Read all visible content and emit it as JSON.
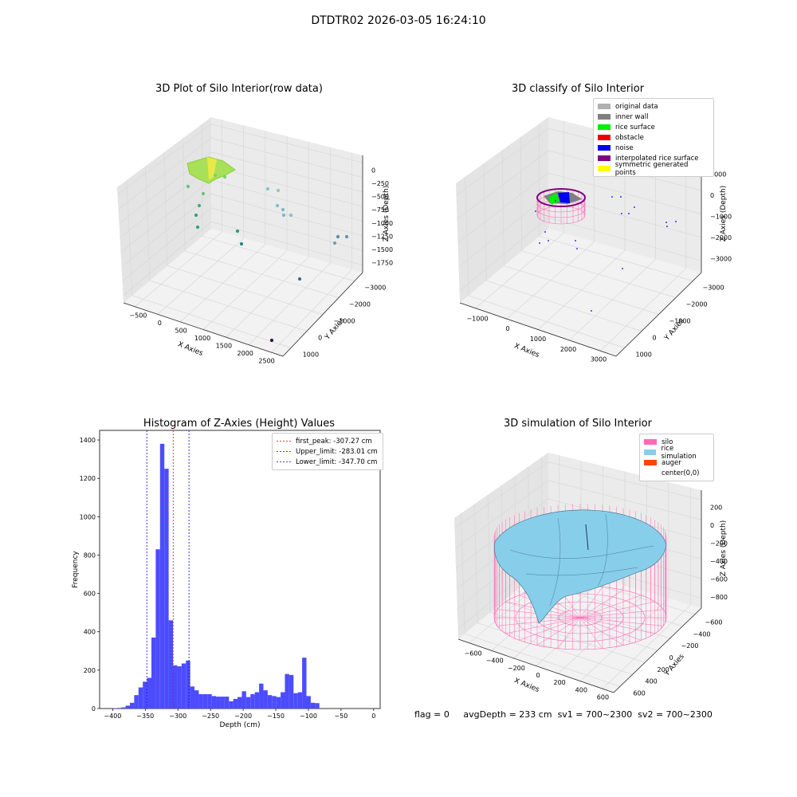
{
  "page": {
    "title": "DTDTR02 2026-03-05 16:24:10",
    "footer": {
      "flag": "flag = 0",
      "avg_depth": "avgDepth = 233 cm",
      "sv1": "sv1 = 700~2300",
      "sv2": "sv2 = 700~2300"
    }
  },
  "chart_data": [
    {
      "type": "scatter",
      "title": "3D Plot of Silo Interior(row data)",
      "xlabel": "X Axies",
      "ylabel": "Y Axies",
      "zlabel": "Z Axies (Depth)",
      "x_ticks": [
        "−500",
        "0",
        "500",
        "1000",
        "1500",
        "2000",
        "2500"
      ],
      "y_ticks": [
        "1000",
        "0",
        "−1000",
        "−2000",
        "−3000"
      ],
      "z_ticks": [
        "0",
        "−250",
        "−500",
        "−750",
        "−1000",
        "−1250",
        "−1500",
        "−1750"
      ],
      "xlim": [
        -600,
        2800
      ],
      "ylim": [
        -3100,
        1400
      ],
      "zlim": [
        -1800,
        50
      ],
      "colormap": "viridis"
    },
    {
      "type": "scatter",
      "title": "3D classify of Silo Interior",
      "xlabel": "X Axies",
      "ylabel": "Y Axies",
      "zlabel": "Z Axies (Depth)",
      "x_ticks": [
        "−1000",
        "0",
        "1000",
        "2000",
        "3000"
      ],
      "y_ticks": [
        "1000",
        "0",
        "−1000",
        "−2000",
        "−3000"
      ],
      "z_ticks": [
        "1000",
        "0",
        "−1000",
        "−2000",
        "−3000"
      ],
      "legend": [
        {
          "label": "original data",
          "color": "#b0b0b0"
        },
        {
          "label": "inner wall",
          "color": "#808080"
        },
        {
          "label": "rice surface",
          "color": "#00ee00"
        },
        {
          "label": "obstacle",
          "color": "#ee0000"
        },
        {
          "label": "noise",
          "color": "#0000ee"
        },
        {
          "label": "interpolated rice surface",
          "color": "#800080"
        },
        {
          "label": "symmetric generated points",
          "color": "#ffff00"
        }
      ],
      "legend_position": "top-right"
    },
    {
      "type": "bar",
      "title": "Histogram of Z-Axies (Height) Values",
      "xlabel": "Depth (cm)",
      "ylabel": "Frequency",
      "bar_color": "#4c4cff",
      "bin_width": 6.6,
      "bins_start": -400,
      "xlim": [
        -420,
        10
      ],
      "ylim": [
        0,
        1450
      ],
      "x_ticks": [
        -400,
        -350,
        -300,
        -250,
        -200,
        -150,
        -100,
        -50,
        0
      ],
      "y_ticks": [
        0,
        200,
        400,
        600,
        800,
        1000,
        1200,
        1400
      ],
      "values": [
        2,
        3,
        6,
        15,
        30,
        70,
        110,
        140,
        160,
        370,
        830,
        1380,
        1250,
        460,
        225,
        220,
        235,
        250,
        115,
        95,
        75,
        75,
        75,
        65,
        62,
        62,
        62,
        38,
        50,
        60,
        90,
        60,
        75,
        85,
        130,
        95,
        70,
        65,
        60,
        85,
        180,
        175,
        80,
        85,
        265,
        65,
        30,
        28
      ],
      "vlines": [
        {
          "label": "first_peak: -307.27 cm",
          "x": -307.27,
          "color": "#ff0000"
        },
        {
          "label": "Upper_limit: -283.01 cm",
          "x": -283.01,
          "color": "#0000ff"
        },
        {
          "label": "Lower_limit: -347.70 cm",
          "x": -347.7,
          "color": "#0000ff"
        }
      ],
      "legend_position": "top-right"
    },
    {
      "type": "surface",
      "title": "3D simulation of Silo Interior",
      "xlabel": "X Axies",
      "ylabel": "Y Axies",
      "zlabel": "Z Axies (Depth)",
      "x_ticks": [
        "−600",
        "−400",
        "−200",
        "0",
        "200",
        "400",
        "600"
      ],
      "y_ticks": [
        "600",
        "400",
        "200",
        "0",
        "−200",
        "−400",
        "−600"
      ],
      "z_ticks": [
        "200",
        "0",
        "−200",
        "−400",
        "−600",
        "−800"
      ],
      "legend": [
        {
          "label": "silo",
          "color": "#ff69b4"
        },
        {
          "label": "rice simulation",
          "color": "#87ceeb"
        },
        {
          "label": "auger",
          "color": "#ff4500"
        },
        {
          "label": "center(0,0)",
          "color": ""
        }
      ],
      "legend_position": "top-right"
    }
  ]
}
